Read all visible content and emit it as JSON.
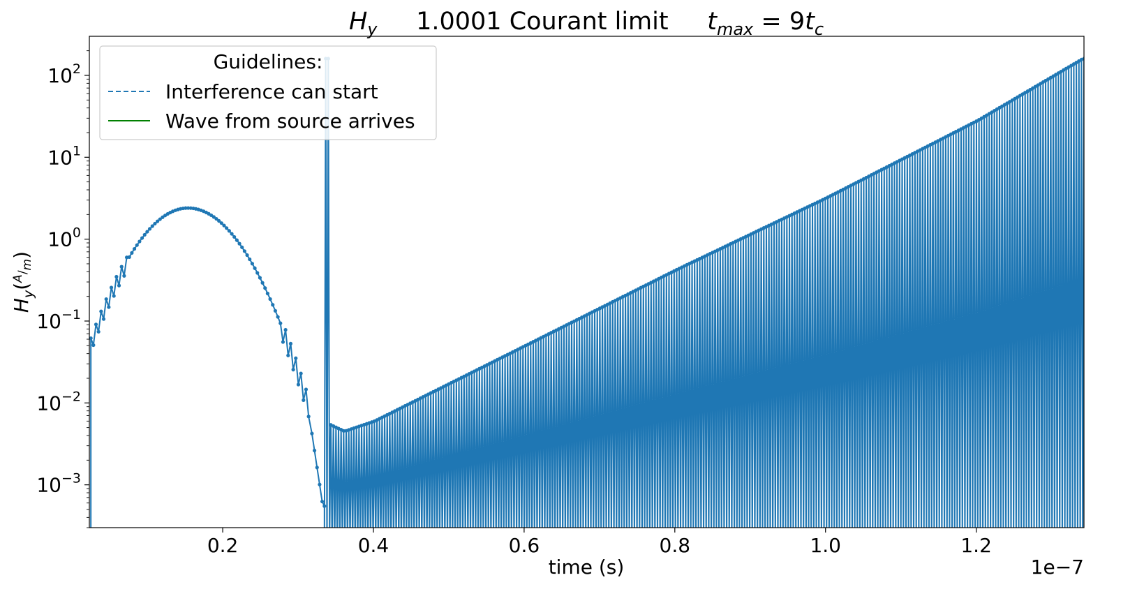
{
  "chart_data": {
    "type": "line",
    "title": {
      "left": {
        "symbol": "H",
        "sub": "y"
      },
      "middle": "1.0001 Courant limit",
      "right": {
        "lhs": "t",
        "lhs_sub": "max",
        "eq": " = 9",
        "rhs": "t",
        "rhs_sub": "c"
      }
    },
    "xlabel": "time (s)",
    "x_offset_label": "1e−7",
    "ylabel": {
      "symbol": "H",
      "sub": "y",
      "unit_num": "A",
      "unit_den": "m"
    },
    "x_scale_factor": 1e-07,
    "xlim": [
      0.0023,
      0.1343
    ],
    "ylim": [
      0.0003,
      300
    ],
    "yscale": "log",
    "x_ticks": [
      {
        "value": 0.02,
        "label": "0.2"
      },
      {
        "value": 0.04,
        "label": "0.4"
      },
      {
        "value": 0.06,
        "label": "0.6"
      },
      {
        "value": 0.08,
        "label": "0.8"
      },
      {
        "value": 0.1,
        "label": "1.0"
      },
      {
        "value": 0.12,
        "label": "1.2"
      }
    ],
    "y_ticks": [
      {
        "value": 0.001,
        "base": "10",
        "exp": "−3"
      },
      {
        "value": 0.01,
        "base": "10",
        "exp": "−2"
      },
      {
        "value": 0.1,
        "base": "10",
        "exp": "−1"
      },
      {
        "value": 1,
        "base": "10",
        "exp": "0"
      },
      {
        "value": 10,
        "base": "10",
        "exp": "1"
      },
      {
        "value": 100,
        "base": "10",
        "exp": "2"
      }
    ],
    "grid": false,
    "legend": {
      "placement": "upper-left",
      "title": "Guidelines:",
      "entries": [
        {
          "label": "Interference can start",
          "style": "dashed",
          "color": "#1f77b4"
        },
        {
          "label": "Wave from source arrives",
          "style": "solid",
          "color": "#008000"
        }
      ]
    },
    "series": [
      {
        "color": "#1f77b4",
        "marker": "circle",
        "t_step": 0.00034,
        "segments": [
          {
            "from": 0.0025,
            "to": 0.0315,
            "shape": "gaussian-bump",
            "peak_x": 0.0154,
            "peak_y": 2.4,
            "start_y": 0.055,
            "end_y": 0.009
          },
          {
            "from": 0.0315,
            "to": 0.0335,
            "shape": "noisy-drop",
            "end_y": 0.00055
          },
          {
            "from": 0.0335,
            "to": 0.1343,
            "shape": "alternating-exponential",
            "envelope": [
              {
                "x": 0.034,
                "y": 0.0055
              },
              {
                "x": 0.036,
                "y": 0.0045
              },
              {
                "x": 0.04,
                "y": 0.006
              },
              {
                "x": 0.06,
                "y": 0.05
              },
              {
                "x": 0.08,
                "y": 0.42
              },
              {
                "x": 0.1,
                "y": 3.2
              },
              {
                "x": 0.12,
                "y": 28
              },
              {
                "x": 0.134,
                "y": 160
              }
            ],
            "trough_y": "below-axis"
          }
        ]
      }
    ]
  },
  "colors": {
    "series": "#1f77b4",
    "axis": "#000000",
    "legend_border": "#cccccc"
  }
}
